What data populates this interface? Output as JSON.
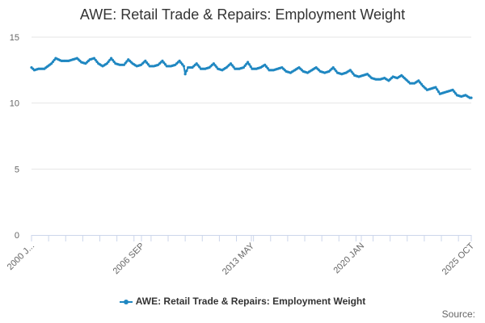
{
  "colors": {
    "series": "#1f87c1",
    "grid": "#e6e6e6",
    "axis": "#ccd6eb",
    "text": "#333333",
    "muted": "#666666"
  },
  "credit": "Source:",
  "chart_data": {
    "type": "line",
    "title": "AWE: Retail Trade & Repairs: Employment Weight",
    "xlabel": "",
    "ylabel": "",
    "ylim": [
      0,
      15
    ],
    "yticks": [
      "0",
      "5",
      "10",
      "15"
    ],
    "grid": true,
    "legend": "bottom-center",
    "x_tick_labels": [
      "2000 J...",
      "2006 SEP",
      "2013 MAY",
      "2020 JAN",
      "2025 OCT"
    ],
    "x_start": "2000-01",
    "x_end": "2025-10",
    "series": [
      {
        "name": "AWE: Retail Trade & Repairs: Employment Weight",
        "anchors": [
          [
            "2000-01",
            12.7
          ],
          [
            "2000-03",
            12.5
          ],
          [
            "2000-06",
            12.6
          ],
          [
            "2000-10",
            12.6
          ],
          [
            "2001-03",
            13.0
          ],
          [
            "2001-06",
            13.4
          ],
          [
            "2001-10",
            13.2
          ],
          [
            "2002-03",
            13.2
          ],
          [
            "2002-06",
            13.3
          ],
          [
            "2002-09",
            13.4
          ],
          [
            "2002-12",
            13.1
          ],
          [
            "2003-03",
            13.0
          ],
          [
            "2003-06",
            13.3
          ],
          [
            "2003-09",
            13.4
          ],
          [
            "2003-12",
            13.0
          ],
          [
            "2004-03",
            12.8
          ],
          [
            "2004-06",
            13.0
          ],
          [
            "2004-09",
            13.4
          ],
          [
            "2004-12",
            13.0
          ],
          [
            "2005-03",
            12.9
          ],
          [
            "2005-06",
            12.9
          ],
          [
            "2005-09",
            13.3
          ],
          [
            "2005-12",
            13.0
          ],
          [
            "2006-03",
            12.8
          ],
          [
            "2006-06",
            12.9
          ],
          [
            "2006-09",
            13.2
          ],
          [
            "2006-12",
            12.8
          ],
          [
            "2007-03",
            12.8
          ],
          [
            "2007-06",
            12.9
          ],
          [
            "2007-09",
            13.2
          ],
          [
            "2007-12",
            12.8
          ],
          [
            "2008-03",
            12.8
          ],
          [
            "2008-06",
            12.9
          ],
          [
            "2008-09",
            13.2
          ],
          [
            "2008-12",
            12.8
          ],
          [
            "2009-01",
            12.2
          ],
          [
            "2009-03",
            12.7
          ],
          [
            "2009-06",
            12.7
          ],
          [
            "2009-09",
            13.0
          ],
          [
            "2009-12",
            12.6
          ],
          [
            "2010-03",
            12.6
          ],
          [
            "2010-06",
            12.7
          ],
          [
            "2010-09",
            13.0
          ],
          [
            "2010-12",
            12.6
          ],
          [
            "2011-03",
            12.5
          ],
          [
            "2011-06",
            12.7
          ],
          [
            "2011-09",
            13.0
          ],
          [
            "2011-12",
            12.6
          ],
          [
            "2012-03",
            12.6
          ],
          [
            "2012-06",
            12.7
          ],
          [
            "2012-09",
            13.1
          ],
          [
            "2012-12",
            12.6
          ],
          [
            "2013-03",
            12.6
          ],
          [
            "2013-06",
            12.7
          ],
          [
            "2013-09",
            12.9
          ],
          [
            "2013-12",
            12.5
          ],
          [
            "2014-03",
            12.5
          ],
          [
            "2014-06",
            12.6
          ],
          [
            "2014-09",
            12.7
          ],
          [
            "2014-12",
            12.4
          ],
          [
            "2015-03",
            12.3
          ],
          [
            "2015-06",
            12.5
          ],
          [
            "2015-09",
            12.7
          ],
          [
            "2015-12",
            12.4
          ],
          [
            "2016-03",
            12.3
          ],
          [
            "2016-06",
            12.5
          ],
          [
            "2016-09",
            12.7
          ],
          [
            "2016-12",
            12.4
          ],
          [
            "2017-03",
            12.3
          ],
          [
            "2017-06",
            12.4
          ],
          [
            "2017-09",
            12.7
          ],
          [
            "2017-12",
            12.3
          ],
          [
            "2018-03",
            12.2
          ],
          [
            "2018-06",
            12.3
          ],
          [
            "2018-09",
            12.5
          ],
          [
            "2018-12",
            12.1
          ],
          [
            "2019-03",
            12.0
          ],
          [
            "2019-06",
            12.1
          ],
          [
            "2019-09",
            12.2
          ],
          [
            "2019-12",
            11.9
          ],
          [
            "2020-03",
            11.8
          ],
          [
            "2020-06",
            11.8
          ],
          [
            "2020-09",
            11.9
          ],
          [
            "2020-12",
            11.7
          ],
          [
            "2021-03",
            12.0
          ],
          [
            "2021-06",
            11.9
          ],
          [
            "2021-09",
            12.1
          ],
          [
            "2021-12",
            11.8
          ],
          [
            "2022-03",
            11.5
          ],
          [
            "2022-06",
            11.5
          ],
          [
            "2022-09",
            11.7
          ],
          [
            "2022-12",
            11.3
          ],
          [
            "2023-03",
            11.0
          ],
          [
            "2023-06",
            11.1
          ],
          [
            "2023-09",
            11.2
          ],
          [
            "2023-12",
            10.7
          ],
          [
            "2024-03",
            10.8
          ],
          [
            "2024-06",
            10.9
          ],
          [
            "2024-09",
            11.0
          ],
          [
            "2024-12",
            10.6
          ],
          [
            "2025-03",
            10.5
          ],
          [
            "2025-06",
            10.6
          ],
          [
            "2025-09",
            10.4
          ],
          [
            "2025-10",
            10.4
          ]
        ]
      }
    ]
  }
}
